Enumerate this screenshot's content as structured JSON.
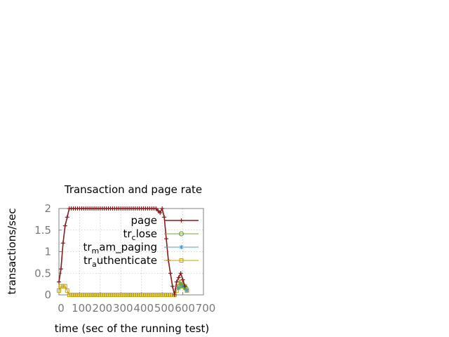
{
  "chart_data": {
    "type": "line",
    "title": "Transaction and page rate",
    "xlabel": "time (sec of the running test)",
    "ylabel": "transactions/sec",
    "xlim": [
      0,
      700
    ],
    "ylim": [
      0,
      2
    ],
    "x_ticks": [
      0,
      100,
      200,
      300,
      400,
      500,
      600,
      700
    ],
    "y_ticks": [
      0,
      0.5,
      1,
      1.5,
      2
    ],
    "grid": true,
    "legend_position": "right",
    "series": [
      {
        "name": "page",
        "legend": {
          "pre": "page",
          "sub": "",
          "post": ""
        },
        "color": "#8b1a1a",
        "marker": "plus",
        "x": [
          0,
          10,
          20,
          30,
          40,
          50,
          60,
          70,
          80,
          90,
          100,
          110,
          120,
          130,
          140,
          150,
          160,
          170,
          180,
          190,
          200,
          210,
          220,
          230,
          240,
          250,
          260,
          270,
          280,
          290,
          300,
          310,
          320,
          330,
          340,
          350,
          360,
          370,
          380,
          390,
          400,
          410,
          420,
          430,
          440,
          450,
          460,
          470,
          480,
          490,
          500,
          510,
          520,
          530,
          540,
          550,
          560,
          570,
          580,
          590,
          600,
          610
        ],
        "y": [
          0.3,
          0.6,
          1.2,
          1.6,
          1.8,
          2,
          2,
          2,
          2,
          2,
          2,
          2,
          2,
          2,
          2,
          2,
          2,
          2,
          2,
          2,
          2,
          2,
          2,
          2,
          2,
          2,
          2,
          2,
          2,
          2,
          2,
          2,
          2,
          2,
          2,
          2,
          2,
          2,
          2,
          2,
          2,
          2,
          2,
          2,
          2,
          2,
          2,
          2,
          1.95,
          1.9,
          2,
          1.8,
          1.3,
          0.8,
          0.5,
          0.2,
          0,
          0.3,
          0.4,
          0.5,
          0.35,
          0.2
        ]
      },
      {
        "name": "tr_close",
        "legend": {
          "pre": "tr",
          "sub": "c",
          "post": "lose"
        },
        "color": "#6aaa3a",
        "marker": "circle",
        "x": [
          585,
          595,
          605,
          615
        ],
        "y": [
          0.2,
          0.3,
          0.2,
          0.15
        ]
      },
      {
        "name": "tr_mampaging",
        "legend": {
          "pre": "tr",
          "sub": "m",
          "post": "am_paging"
        },
        "color": "#4a9ad8",
        "marker": "star",
        "x": [
          580,
          590,
          600,
          610,
          620
        ],
        "y": [
          0.15,
          0.25,
          0.2,
          0.15,
          0.1
        ]
      },
      {
        "name": "tr_authenticate",
        "legend": {
          "pre": "tr",
          "sub": "a",
          "post": "uthenticate"
        },
        "color": "#c8a000",
        "marker": "square",
        "x": [
          0,
          10,
          20,
          30,
          40,
          50,
          60,
          70,
          80,
          90,
          100,
          110,
          120,
          130,
          140,
          150,
          160,
          170,
          180,
          190,
          200,
          210,
          220,
          230,
          240,
          250,
          260,
          270,
          280,
          290,
          300,
          310,
          320,
          330,
          340,
          350,
          360,
          370,
          380,
          390,
          400,
          410,
          420,
          430,
          440,
          450,
          460,
          470,
          480,
          490,
          500,
          510,
          520,
          530,
          540,
          550,
          560,
          570,
          580,
          590,
          600,
          610,
          620
        ],
        "y": [
          0.1,
          0.2,
          0.2,
          0.2,
          0.1,
          0,
          0,
          0,
          0,
          0,
          0,
          0,
          0,
          0,
          0,
          0,
          0,
          0,
          0,
          0,
          0,
          0,
          0,
          0,
          0,
          0,
          0,
          0,
          0,
          0,
          0,
          0,
          0,
          0,
          0,
          0,
          0,
          0,
          0,
          0,
          0,
          0,
          0,
          0,
          0,
          0,
          0,
          0,
          0,
          0,
          0,
          0,
          0,
          0,
          0,
          0,
          0,
          0.1,
          0.2,
          0.3,
          0.2,
          0.2,
          0.1
        ]
      }
    ]
  }
}
